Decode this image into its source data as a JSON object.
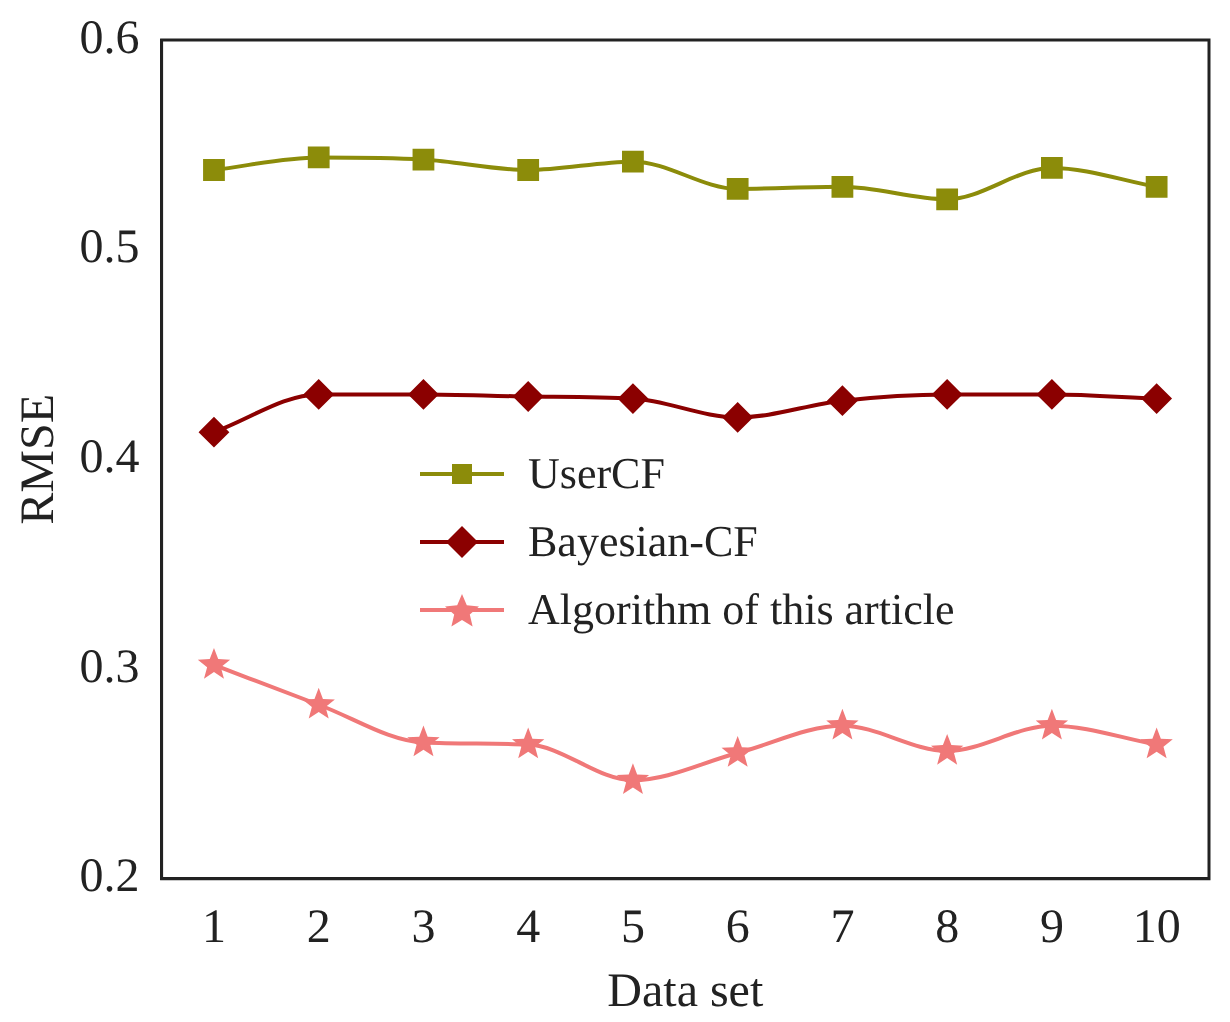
{
  "chart_data": {
    "type": "line",
    "xlabel": "Data set",
    "ylabel": "RMSE",
    "categories": [
      "1",
      "2",
      "3",
      "4",
      "5",
      "6",
      "7",
      "8",
      "9",
      "10"
    ],
    "ylim": [
      0.2,
      0.6
    ],
    "yticks": [
      0.2,
      0.3,
      0.4,
      0.5,
      0.6
    ],
    "grid": false,
    "legend": "left",
    "series": [
      {
        "name": "UserCF",
        "color": "#8c8c0a",
        "marker": "square",
        "values": [
          0.538,
          0.544,
          0.543,
          0.538,
          0.542,
          0.529,
          0.53,
          0.524,
          0.539,
          0.53
        ]
      },
      {
        "name": "Bayesian-CF",
        "color": "#8b0000",
        "marker": "diamond",
        "values": [
          0.413,
          0.431,
          0.431,
          0.43,
          0.429,
          0.42,
          0.428,
          0.431,
          0.431,
          0.429
        ]
      },
      {
        "name": "Algorithm of this article",
        "color": "#f07878",
        "marker": "star",
        "values": [
          0.302,
          0.283,
          0.265,
          0.264,
          0.247,
          0.26,
          0.273,
          0.261,
          0.273,
          0.264
        ]
      }
    ]
  }
}
